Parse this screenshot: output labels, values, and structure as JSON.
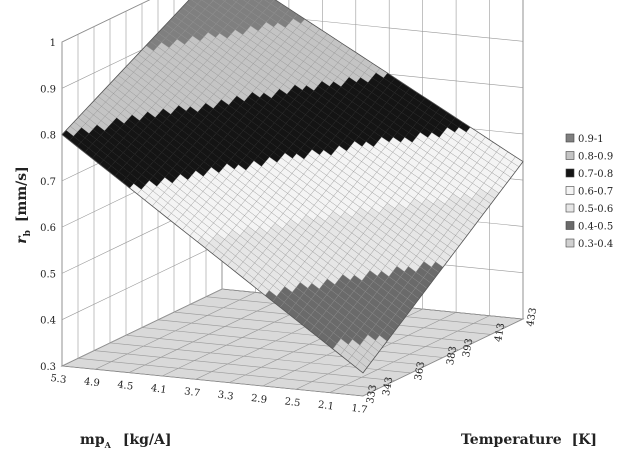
{
  "chart_data": {
    "type": "surface",
    "zlabel_symbol": "r",
    "zlabel_subscript": "b",
    "zlabel_units": "[mm/s]",
    "xlabel": "mp",
    "xlabel_subscript": "A",
    "xlabel_units": "[kg/A]",
    "ylabel": "Temperature",
    "ylabel_units": "[K]",
    "z_ticks": [
      "0.3",
      "0.4",
      "0.5",
      "0.6",
      "0.7",
      "0.8",
      "0.9",
      "1"
    ],
    "zlim": [
      0.3,
      1.0
    ],
    "x_ticks": [
      "5.3",
      "4.9",
      "4.5",
      "4.1",
      "3.7",
      "3.3",
      "2.9",
      "2.5",
      "2.1",
      "1.7"
    ],
    "y_ticks": [
      "333",
      "343",
      "353",
      "363",
      "373",
      "383",
      "393",
      "403",
      "413",
      "423",
      "433"
    ],
    "y_ticks_display": [
      "333",
      "343",
      "",
      "363",
      "",
      "383",
      "393",
      "",
      "413",
      "",
      "433"
    ],
    "corners": {
      "x_high_y_low": 0.8,
      "x_low_y_low": 0.35,
      "x_high_y_high": 1.0,
      "x_low_y_high": 0.64
    },
    "bands": [
      {
        "label": "0.9-1",
        "lo": 0.9,
        "hi": 1.0,
        "color": "#7f7f7f"
      },
      {
        "label": "0.8-0.9",
        "lo": 0.8,
        "hi": 0.9,
        "color": "#c4c4c4"
      },
      {
        "label": "0.7-0.8",
        "lo": 0.7,
        "hi": 0.8,
        "color": "#141414"
      },
      {
        "label": "0.6-0.7",
        "lo": 0.6,
        "hi": 0.7,
        "color": "#f4f4f4"
      },
      {
        "label": "0.5-0.6",
        "lo": 0.5,
        "hi": 0.6,
        "color": "#e6e6e6"
      },
      {
        "label": "0.4-0.5",
        "lo": 0.4,
        "hi": 0.5,
        "color": "#6a6a6a"
      },
      {
        "label": "0.3-0.4",
        "lo": 0.3,
        "hi": 0.4,
        "color": "#d0d0d0"
      }
    ],
    "grid": true,
    "legend_position": "right"
  }
}
